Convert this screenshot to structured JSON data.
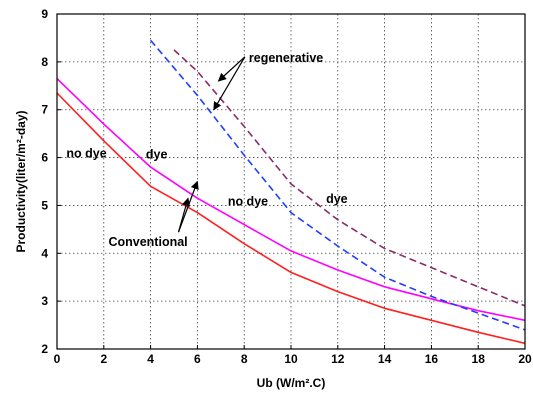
{
  "chart_data": {
    "type": "line",
    "xlabel": "Ub (W/m².C)",
    "ylabel": "Productivity(liter/m²-day)",
    "xlim": [
      0,
      20
    ],
    "ylim": [
      2,
      9
    ],
    "x_ticks": [
      0,
      2,
      4,
      6,
      8,
      10,
      12,
      14,
      16,
      18,
      20
    ],
    "y_ticks": [
      2,
      3,
      4,
      5,
      6,
      7,
      8,
      9
    ],
    "grid": true,
    "series": [
      {
        "color": "#ff2020",
        "style": "solid",
        "x": [
          0,
          2,
          4,
          6,
          8,
          10,
          12,
          14,
          16,
          18,
          20
        ],
        "y": [
          7.35,
          6.35,
          5.4,
          4.85,
          4.2,
          3.6,
          3.2,
          2.85,
          2.6,
          2.35,
          2.12
        ]
      },
      {
        "color": "#ff00ff",
        "style": "solid",
        "x": [
          0,
          2,
          4,
          6,
          8,
          10,
          12,
          14,
          16,
          18,
          20
        ],
        "y": [
          7.65,
          6.7,
          5.8,
          5.15,
          4.6,
          4.05,
          3.65,
          3.3,
          3.05,
          2.8,
          2.6
        ]
      },
      {
        "color": "#1f3fff",
        "style": "dashed",
        "x": [
          4,
          6,
          8,
          10,
          12,
          14,
          16,
          18,
          20
        ],
        "y": [
          8.45,
          7.3,
          6.05,
          4.85,
          4.15,
          3.5,
          3.1,
          2.75,
          2.4
        ]
      },
      {
        "color": "#8b2a6a",
        "style": "dashed",
        "x": [
          5,
          6,
          8,
          10,
          12,
          14,
          16,
          18,
          20
        ],
        "y": [
          8.25,
          7.8,
          6.65,
          5.45,
          4.7,
          4.1,
          3.7,
          3.3,
          2.9
        ]
      }
    ],
    "annotations": [
      {
        "text": "regenerative",
        "x": 8.2,
        "y": 8.0,
        "arrows_to": [
          [
            6.9,
            7.6
          ],
          [
            6.7,
            7.0
          ]
        ]
      },
      {
        "text": "dye",
        "x": 11.5,
        "y": 5.05
      },
      {
        "text": "no dye",
        "x": 7.3,
        "y": 5.0
      },
      {
        "text": "no dye",
        "x": 0.4,
        "y": 6.0
      },
      {
        "text": "dye",
        "x": 3.8,
        "y": 5.98
      },
      {
        "text": "Conventional",
        "x": 2.2,
        "y": 4.15,
        "arrows_to": [
          [
            6.0,
            5.5
          ],
          [
            5.6,
            5.15
          ]
        ]
      }
    ]
  }
}
